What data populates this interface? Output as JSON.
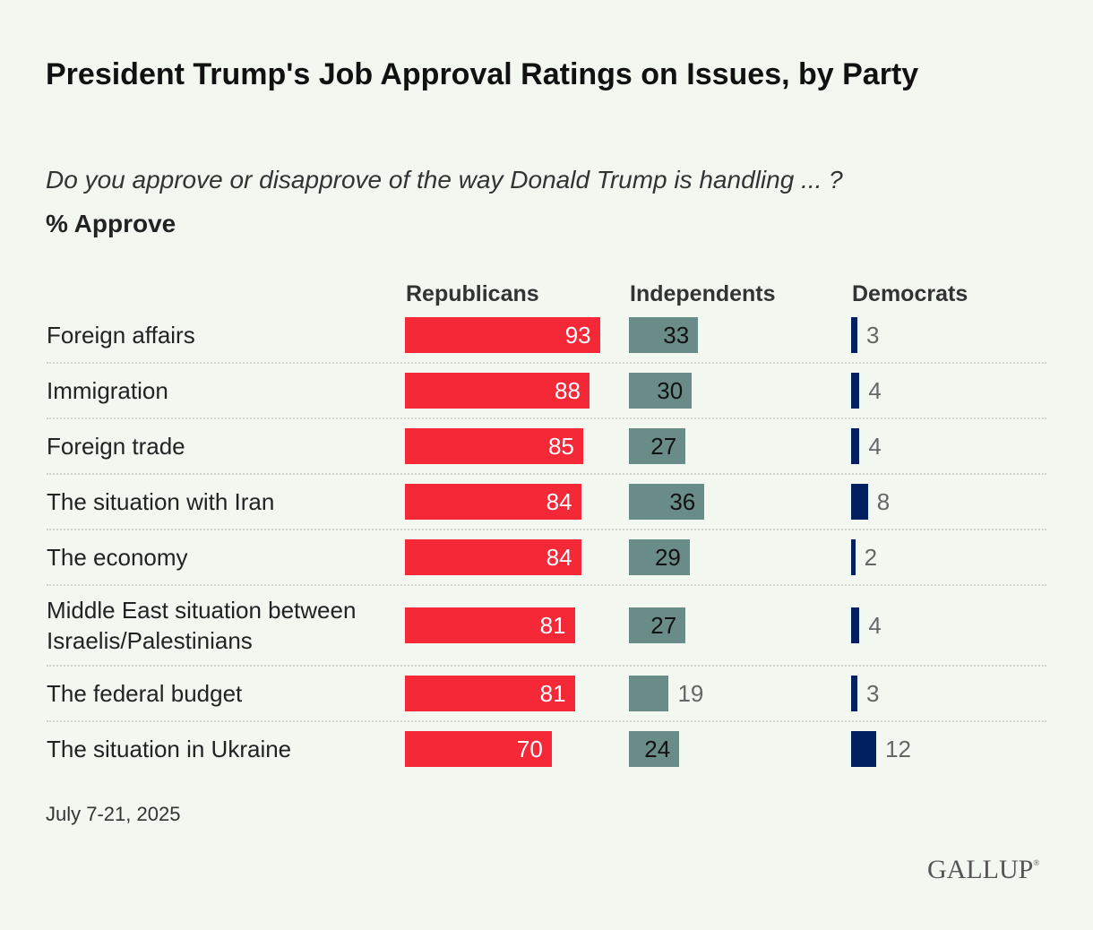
{
  "title": "President Trump's Job Approval Ratings on Issues, by Party",
  "subtitle": "Do you approve or disapprove of the way Donald Trump is handling ... ?",
  "unit_label": "% Approve",
  "note": "July 7-21, 2025",
  "logo": "GALLUP",
  "colors": {
    "Republicans": "#f52837",
    "Independents": "#6a8c88",
    "Democrats": "#00205f",
    "background": "#f2f8f0"
  },
  "chart_data": {
    "type": "bar",
    "orientation": "horizontal",
    "title": "President Trump's Job Approval Ratings on Issues, by Party",
    "categories": [
      "Foreign affairs",
      "Immigration",
      "Foreign trade",
      "The situation with Iran",
      "The economy",
      "Middle East situation between Israelis/Palestinians",
      "The federal budget",
      "The situation in Ukraine"
    ],
    "series": [
      {
        "name": "Republicans",
        "values": [
          93,
          88,
          85,
          84,
          84,
          81,
          81,
          70
        ]
      },
      {
        "name": "Independents",
        "values": [
          33,
          30,
          27,
          36,
          29,
          27,
          19,
          24
        ]
      },
      {
        "name": "Democrats",
        "values": [
          3,
          4,
          4,
          8,
          2,
          4,
          3,
          12
        ]
      }
    ],
    "xlim": [
      0,
      100
    ],
    "grid": false
  }
}
